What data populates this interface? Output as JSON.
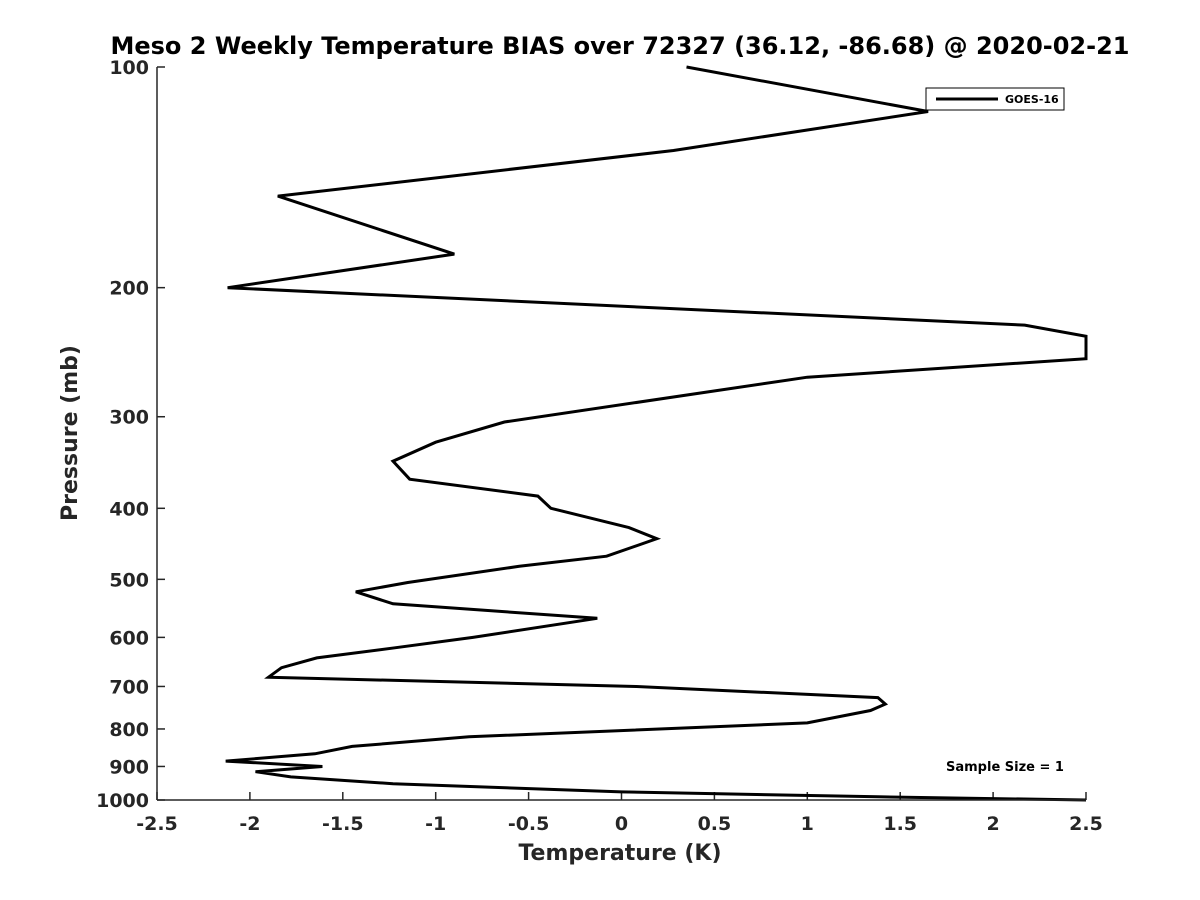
{
  "chart_data": {
    "type": "line",
    "title": "Meso 2 Weekly Temperature BIAS over 72327 (36.12, -86.68) @ 2020-02-21",
    "xlabel": "Temperature (K)",
    "ylabel": "Pressure (mb)",
    "xlim": [
      -2.5,
      2.5
    ],
    "ylim": [
      100,
      1000
    ],
    "yscale": "log",
    "y_reversed": true,
    "x_ticks": [
      -2.5,
      -2,
      -1.5,
      -1,
      -0.5,
      0,
      0.5,
      1,
      1.5,
      2,
      2.5
    ],
    "x_tick_labels": [
      "-2.5",
      "-2",
      "-1.5",
      "-1",
      "-0.5",
      "0",
      "0.5",
      "1",
      "1.5",
      "2",
      "2.5"
    ],
    "y_ticks": [
      100,
      200,
      300,
      400,
      500,
      600,
      700,
      800,
      900,
      1000
    ],
    "y_tick_labels": [
      "100",
      "200",
      "300",
      "400",
      "500",
      "600",
      "700",
      "800",
      "900",
      "1000"
    ],
    "legend_location": "top-right",
    "annotation": "Sample Size = 1",
    "series": [
      {
        "name": "GOES-16",
        "color": "#000000",
        "x": [
          0.35,
          1.65,
          0.28,
          -1.85,
          -0.9,
          -2.12,
          2.17,
          2.5,
          2.5,
          1.0,
          -0.63,
          -1.0,
          -1.23,
          -1.14,
          -0.45,
          -0.38,
          0.04,
          0.19,
          -0.08,
          -0.55,
          -1.15,
          -1.43,
          -1.23,
          -0.13,
          -0.8,
          -1.22,
          -1.64,
          -1.83,
          -1.9,
          0.08,
          1.38,
          1.42,
          1.34,
          1.0,
          -0.82,
          -1.45,
          -1.65,
          -2.13,
          -1.61,
          -1.97,
          -1.78,
          -1.23,
          0.0,
          1.38,
          2.5
        ],
        "y": [
          100,
          115,
          130,
          150,
          180,
          200,
          225,
          233,
          250,
          265,
          305,
          325,
          345,
          365,
          385,
          400,
          425,
          440,
          465,
          480,
          505,
          520,
          540,
          565,
          600,
          620,
          640,
          660,
          680,
          700,
          725,
          740,
          755,
          785,
          820,
          845,
          865,
          885,
          900,
          915,
          930,
          950,
          975,
          990,
          1000
        ]
      }
    ]
  }
}
